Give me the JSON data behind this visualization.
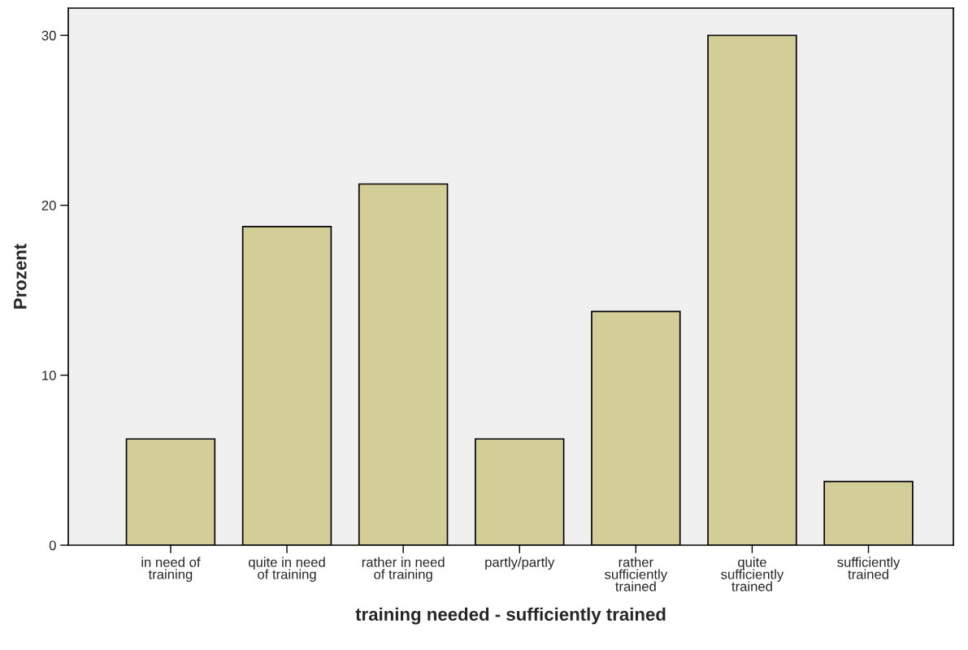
{
  "chart_data": {
    "type": "bar",
    "xlabel": "training needed - sufficiently trained",
    "ylabel": "Prozent",
    "categories": [
      "in need of training",
      "quite in need of training",
      "rather in need of training",
      "partly/partly",
      "rather sufficiently trained",
      "quite sufficiently trained",
      "sufficiently trained"
    ],
    "values": [
      6.25,
      18.75,
      21.25,
      6.25,
      13.75,
      30,
      3.75
    ],
    "color": "#d3ce97",
    "ylim": [
      0,
      31.6
    ],
    "yticks": [
      0,
      10,
      20,
      30
    ],
    "grid": false,
    "legend": false
  }
}
